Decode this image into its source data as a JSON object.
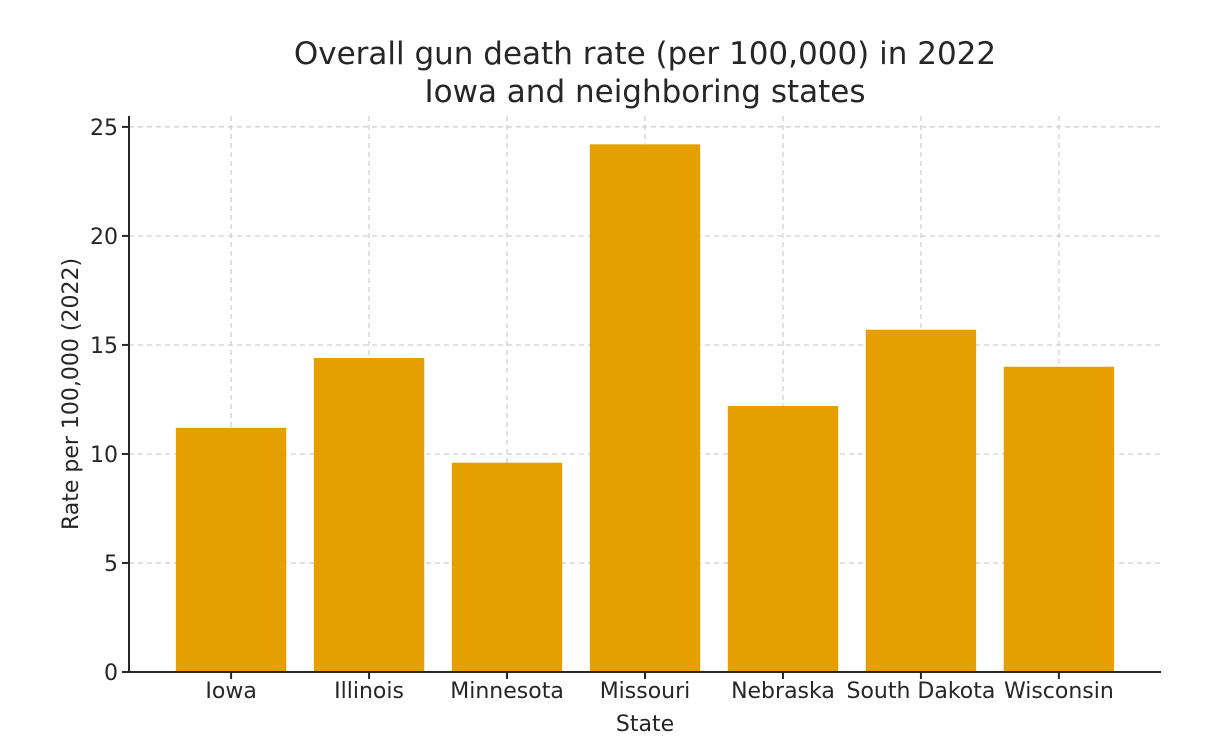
{
  "chart_data": {
    "type": "bar",
    "title": "Overall gun death rate (per 100,000) in 2022",
    "subtitle": "Iowa and neighboring states",
    "xlabel": "State",
    "ylabel": "Rate per 100,000 (2022)",
    "categories": [
      "Iowa",
      "Illinois",
      "Minnesota",
      "Missouri",
      "Nebraska",
      "South Dakota",
      "Wisconsin"
    ],
    "values": [
      11.2,
      14.4,
      9.6,
      24.2,
      12.2,
      15.7,
      14.0
    ],
    "ylim": [
      0,
      25.5
    ],
    "yticks": [
      0,
      5,
      10,
      15,
      20,
      25
    ],
    "grid": true,
    "bar_color": "#E69F00",
    "legend": null
  }
}
